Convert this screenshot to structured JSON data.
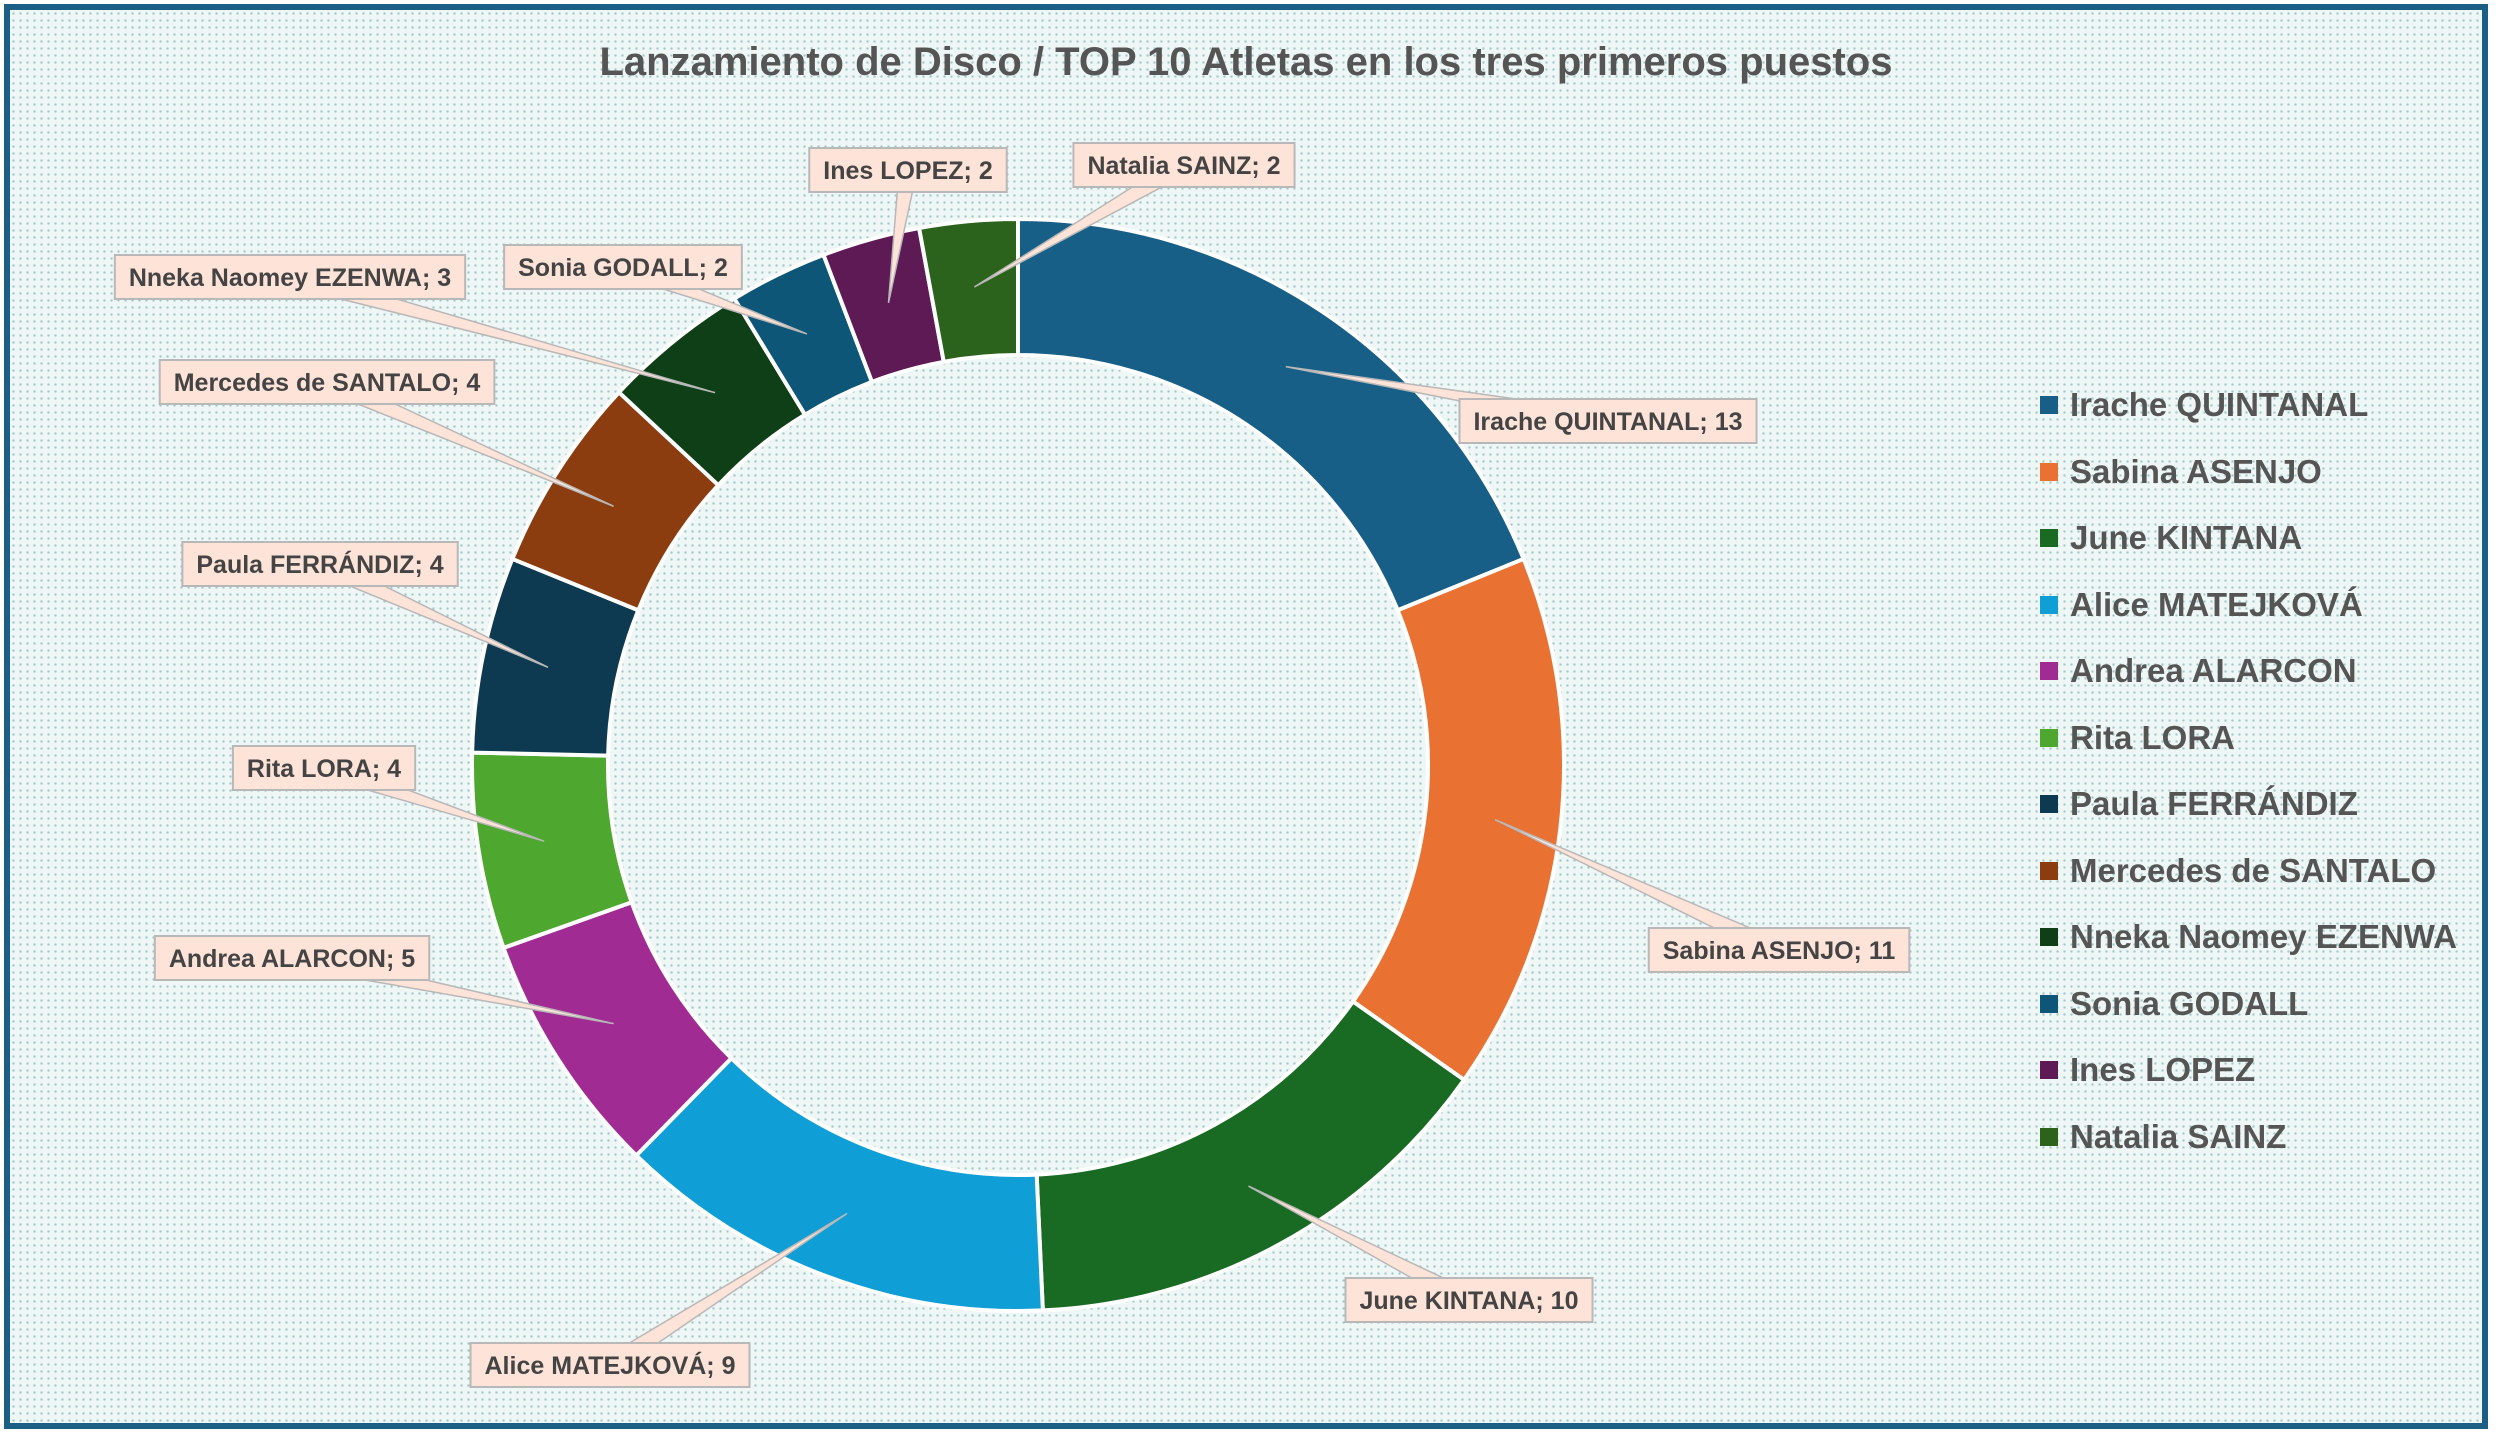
{
  "chart_data": {
    "type": "doughnut",
    "title": "Lanzamiento de Disco / TOP 10 Atletas en los tres primeros puestos",
    "legend_position": "right",
    "series": [
      {
        "name": "Irache QUINTANAL",
        "value": 13,
        "label": "Irache QUINTANAL; 13",
        "color": "#175f86"
      },
      {
        "name": "Sabina ASENJO",
        "value": 11,
        "label": "Sabina ASENJO; 11",
        "color": "#e97132"
      },
      {
        "name": "June KINTANA",
        "value": 10,
        "label": "June KINTANA; 10",
        "color": "#196b24"
      },
      {
        "name": "Alice MATEJKOVÁ",
        "value": 9,
        "label": "Alice MATEJKOVÁ; 9",
        "color": "#0f9ed5"
      },
      {
        "name": "Andrea ALARCON",
        "value": 5,
        "label": "Andrea ALARCON; 5",
        "color": "#a02b93"
      },
      {
        "name": "Rita LORA",
        "value": 4,
        "label": "Rita LORA; 4",
        "color": "#4ea72e"
      },
      {
        "name": "Paula FERRÁNDIZ",
        "value": 4,
        "label": "Paula FERRÁNDIZ; 4",
        "color": "#0e3a51"
      },
      {
        "name": "Mercedes de SANTALO",
        "value": 4,
        "label": "Mercedes de SANTALO; 4",
        "color": "#8c3d10"
      },
      {
        "name": "Nneka Naomey EZENWA",
        "value": 3,
        "label": "Nneka Naomey EZENWA; 3",
        "color": "#0f3f16"
      },
      {
        "name": "Sonia GODALL",
        "value": 2,
        "label": "Sonia GODALL; 2",
        "color": "#0d5677"
      },
      {
        "name": "Ines LOPEZ",
        "value": 2,
        "label": "Ines LOPEZ; 2",
        "color": "#5e1a55"
      },
      {
        "name": "Natalia SAINZ",
        "value": 2,
        "label": "Natalia SAINZ; 2",
        "color": "#2c631c"
      }
    ]
  }
}
